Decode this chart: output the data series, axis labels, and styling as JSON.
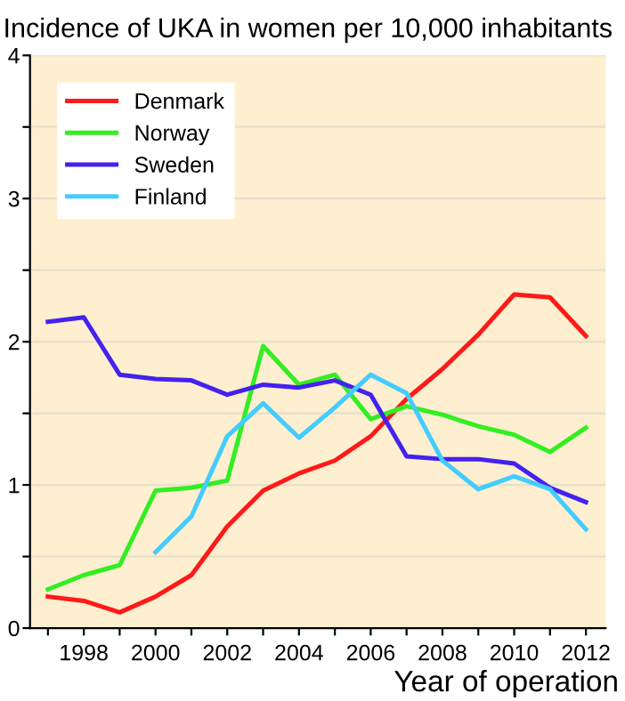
{
  "chart_data": {
    "type": "line",
    "title": "Incidence of UKA in women per 10,000 inhabitants",
    "xlabel": "Year of operation",
    "x": [
      1997,
      1998,
      1999,
      2000,
      2001,
      2002,
      2003,
      2004,
      2005,
      2006,
      2007,
      2008,
      2009,
      2010,
      2011,
      2012
    ],
    "series": [
      {
        "name": "Denmark",
        "color": "#ff1a1a",
        "values": [
          0.22,
          0.19,
          0.11,
          0.22,
          0.37,
          0.71,
          0.96,
          1.08,
          1.17,
          1.34,
          1.6,
          1.81,
          2.05,
          2.33,
          2.31,
          2.04
        ]
      },
      {
        "name": "Norway",
        "color": "#33ee22",
        "values": [
          0.27,
          0.37,
          0.44,
          0.96,
          0.98,
          1.03,
          1.97,
          1.7,
          1.77,
          1.46,
          1.55,
          1.49,
          1.41,
          1.35,
          1.23,
          1.4
        ]
      },
      {
        "name": "Sweden",
        "color": "#4422ee",
        "values": [
          2.14,
          2.17,
          1.77,
          1.74,
          1.73,
          1.63,
          1.7,
          1.68,
          1.73,
          1.63,
          1.2,
          1.18,
          1.18,
          1.15,
          0.98,
          0.88
        ]
      },
      {
        "name": "Finland",
        "color": "#44ccff",
        "values": [
          null,
          null,
          null,
          0.53,
          0.78,
          1.34,
          1.57,
          1.33,
          1.54,
          1.77,
          1.64,
          1.17,
          0.97,
          1.06,
          0.97,
          0.69
        ]
      }
    ],
    "xlim": [
      1996.5,
      2012.55
    ],
    "ylim": [
      0,
      4
    ],
    "xticks": [
      {
        "value": 1997,
        "label": null
      },
      1998,
      {
        "value": 1999,
        "label": null
      },
      2000,
      {
        "value": 2001,
        "label": null
      },
      2002,
      {
        "value": 2003,
        "label": null
      },
      2004,
      {
        "value": 2005,
        "label": null
      },
      2006,
      {
        "value": 2007,
        "label": null
      },
      2008,
      {
        "value": 2009,
        "label": null
      },
      2010,
      {
        "value": 2011,
        "label": null
      },
      2012
    ],
    "yticks": [
      0,
      {
        "value": 0.5,
        "label": null
      },
      1,
      {
        "value": 1.5,
        "label": null
      },
      2,
      {
        "value": 2.5,
        "label": null
      },
      3,
      {
        "value": 3.5,
        "label": null
      },
      4
    ],
    "grid": "y",
    "legend": "top left",
    "marker": "none",
    "line_style": "solid"
  }
}
